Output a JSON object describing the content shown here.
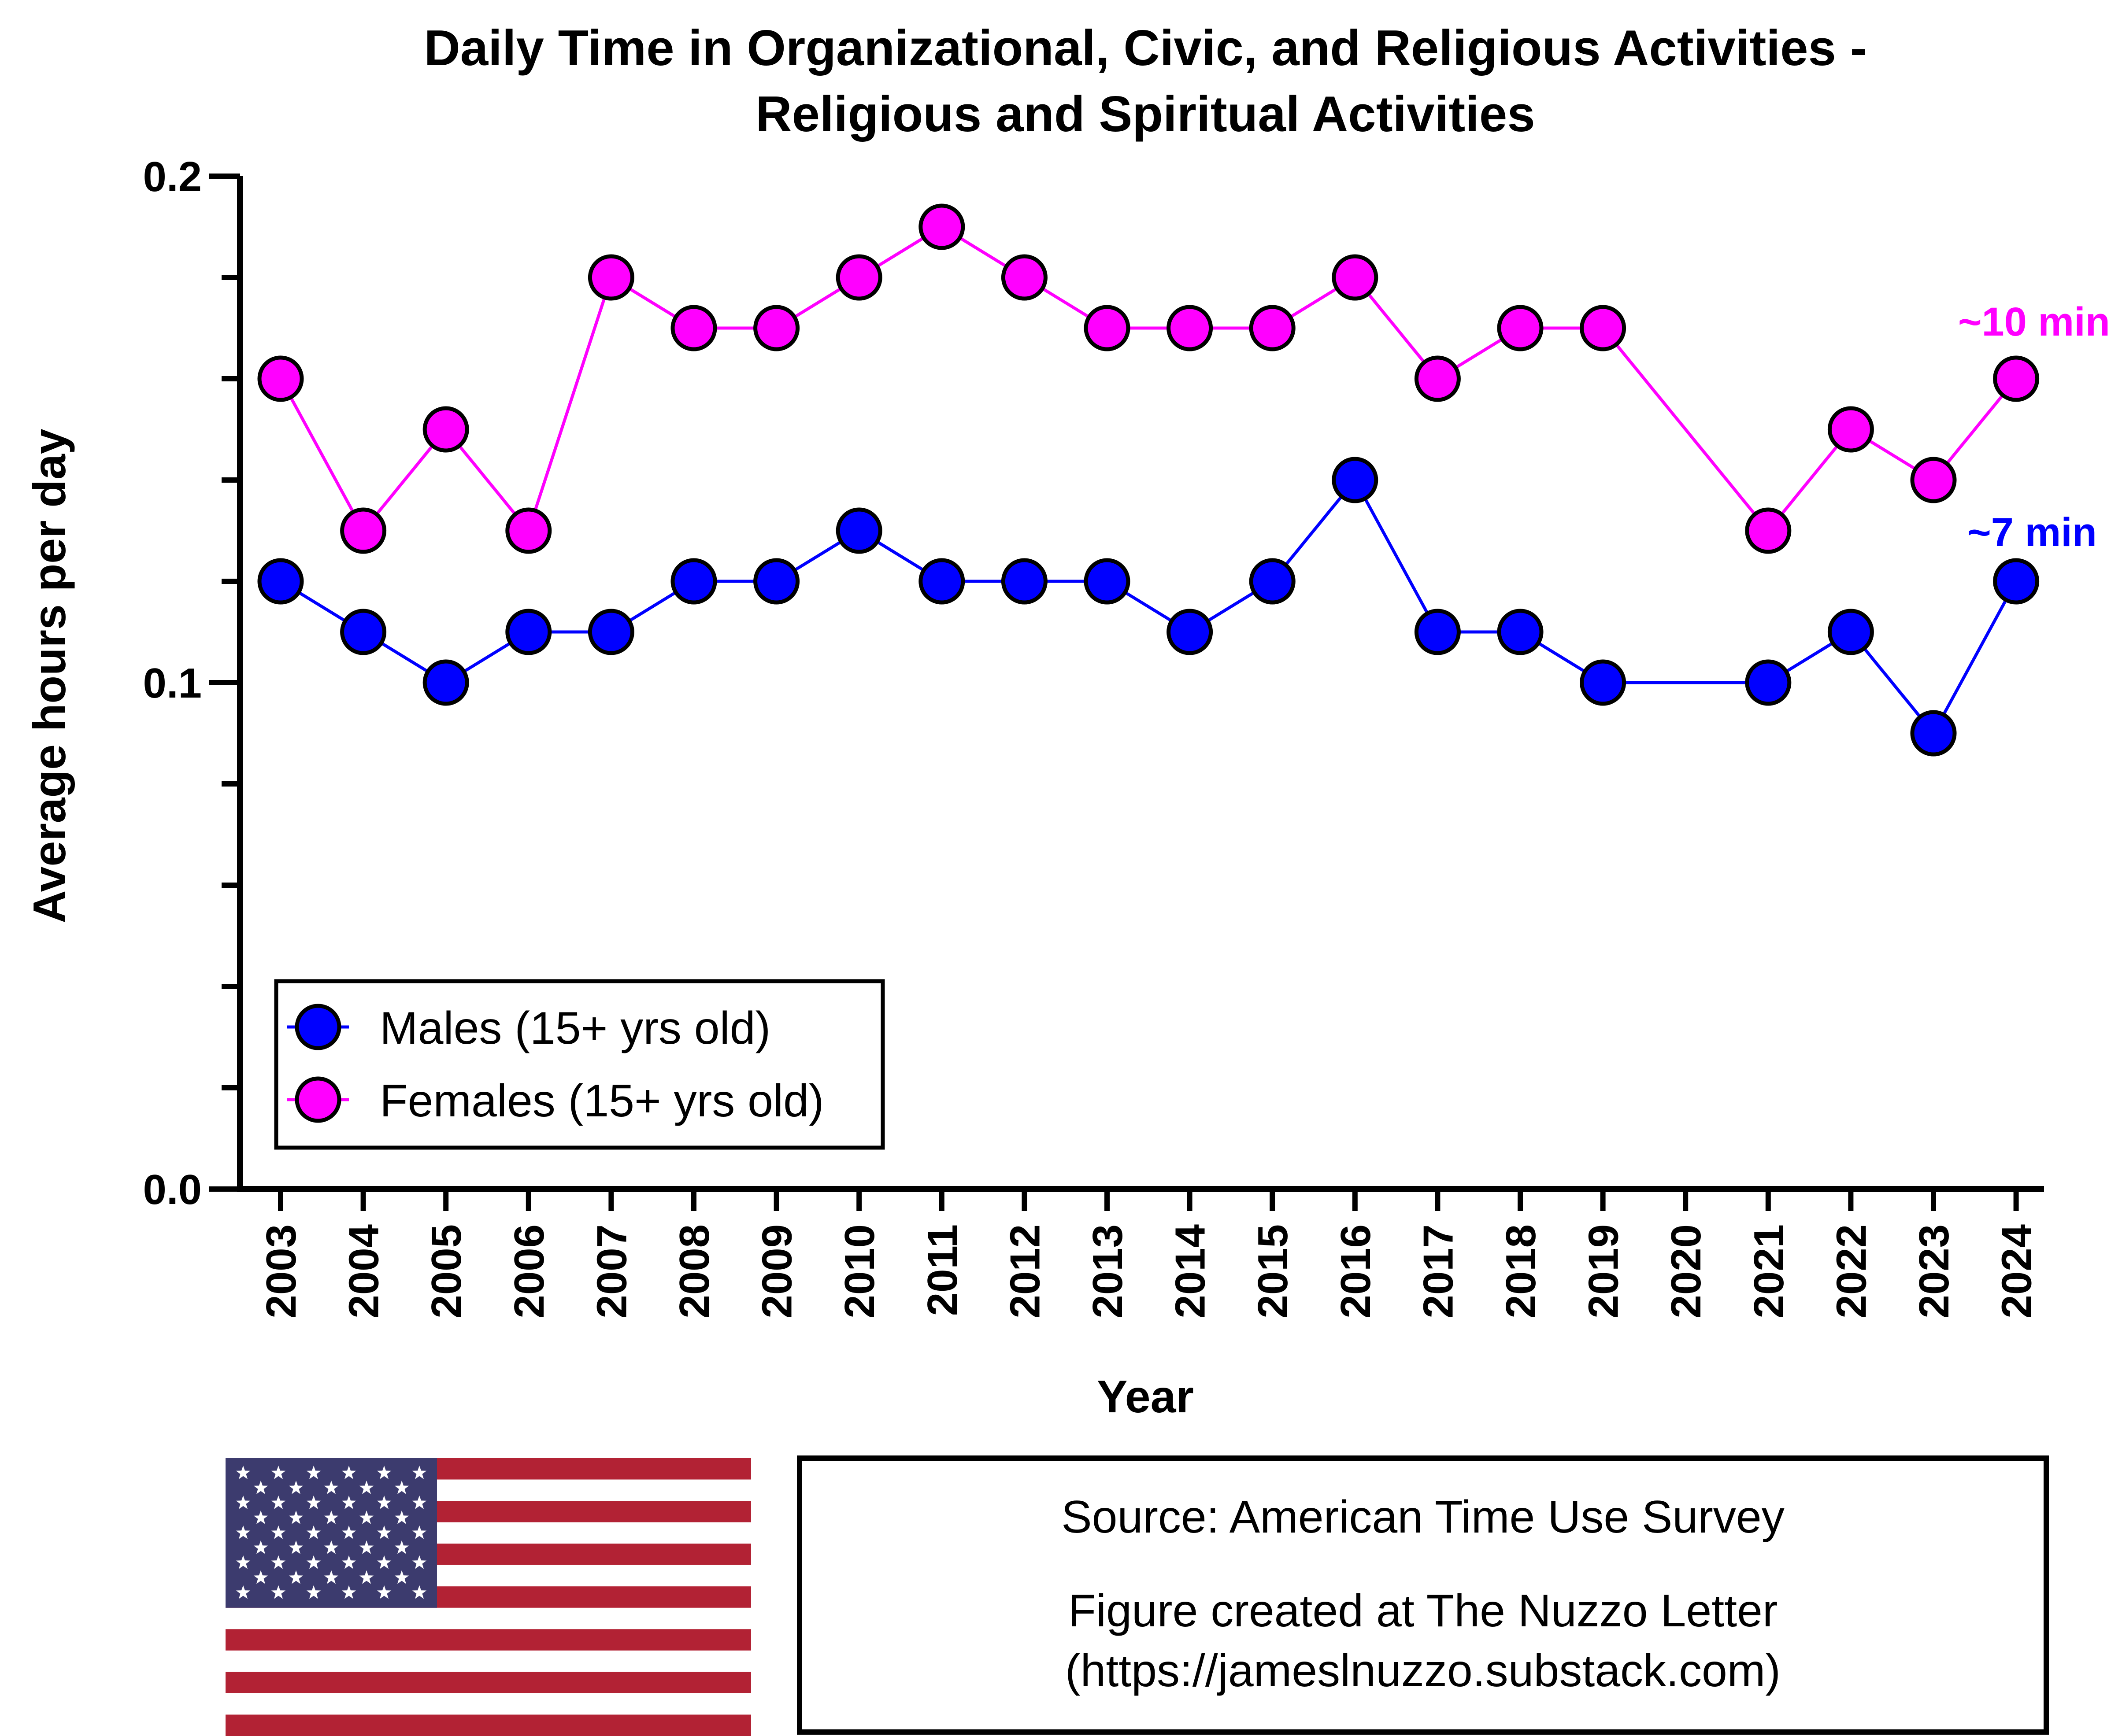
{
  "chart_data": {
    "type": "line",
    "title": [
      "Daily Time in Organizational, Civic, and Religious Activities -",
      "Religious and Spiritual Activities"
    ],
    "xlabel": "Year",
    "ylabel": "Average hours per day",
    "ylim": [
      0,
      0.2
    ],
    "yticks": [
      {
        "value": 0.0,
        "label": "0.0"
      },
      {
        "value": 0.1,
        "label": "0.1"
      },
      {
        "value": 0.2,
        "label": "0.2"
      }
    ],
    "y_minor_step": 0.02,
    "categories": [
      "2003",
      "2004",
      "2005",
      "2006",
      "2007",
      "2008",
      "2009",
      "2010",
      "2011",
      "2012",
      "2013",
      "2014",
      "2015",
      "2016",
      "2017",
      "2018",
      "2019",
      "2020",
      "2021",
      "2022",
      "2023",
      "2024"
    ],
    "series": [
      {
        "name": "Males (15+ yrs old)",
        "color": "#0000ff",
        "values": [
          0.12,
          0.11,
          0.1,
          0.11,
          0.11,
          0.12,
          0.12,
          0.13,
          0.12,
          0.12,
          0.12,
          0.11,
          0.12,
          0.14,
          0.11,
          0.11,
          0.1,
          null,
          0.1,
          0.11,
          0.09,
          0.12
        ],
        "annotation": "~7 min"
      },
      {
        "name": "Females (15+ yrs old)",
        "color": "#ff00ff",
        "values": [
          0.16,
          0.13,
          0.15,
          0.13,
          0.18,
          0.17,
          0.17,
          0.18,
          0.19,
          0.18,
          0.17,
          0.17,
          0.17,
          0.18,
          0.16,
          0.17,
          0.17,
          null,
          0.13,
          0.15,
          0.14,
          0.16
        ],
        "annotation": "~10 min"
      }
    ],
    "legend": "bottom-left",
    "grid": false
  },
  "source": {
    "line1": "Source: American Time Use Survey",
    "line2": "Figure created at The Nuzzo Letter",
    "line3": "(https://jameslnuzzo.substack.com)"
  },
  "flag": {
    "name": "us-flag",
    "stripe_red": "#b22234",
    "canton_blue": "#3c3b6e"
  }
}
